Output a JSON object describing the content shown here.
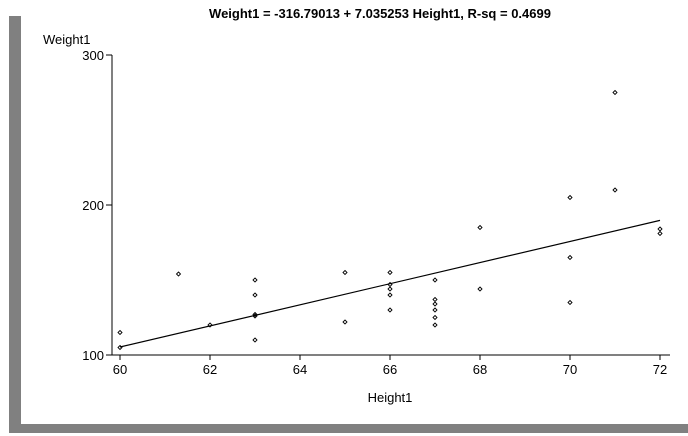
{
  "chart_data": {
    "type": "scatter",
    "title": "Weight1 = -316.79013 + 7.035253 Height1,   R-sq = 0.4699",
    "xlabel": "Height1",
    "ylabel": "Weight1",
    "xlim": [
      60,
      72
    ],
    "ylim": [
      100,
      300
    ],
    "xticks": [
      "60",
      "62",
      "64",
      "66",
      "68",
      "70",
      "72"
    ],
    "yticks": [
      "100",
      "200",
      "300"
    ],
    "grid": false,
    "regression": {
      "intercept": -316.79013,
      "slope": 7.035253,
      "x_range": [
        60,
        72
      ]
    },
    "points": [
      {
        "x": 60,
        "y": 115
      },
      {
        "x": 60,
        "y": 105
      },
      {
        "x": 61.3,
        "y": 154
      },
      {
        "x": 62,
        "y": 120
      },
      {
        "x": 63,
        "y": 150
      },
      {
        "x": 63,
        "y": 140
      },
      {
        "x": 63,
        "y": 127
      },
      {
        "x": 63,
        "y": 126
      },
      {
        "x": 63,
        "y": 110
      },
      {
        "x": 65,
        "y": 155
      },
      {
        "x": 65,
        "y": 122
      },
      {
        "x": 66,
        "y": 155
      },
      {
        "x": 66,
        "y": 147
      },
      {
        "x": 66,
        "y": 144
      },
      {
        "x": 66,
        "y": 140
      },
      {
        "x": 66,
        "y": 130
      },
      {
        "x": 67,
        "y": 150
      },
      {
        "x": 67,
        "y": 137
      },
      {
        "x": 67,
        "y": 134
      },
      {
        "x": 67,
        "y": 130
      },
      {
        "x": 67,
        "y": 125
      },
      {
        "x": 67,
        "y": 120
      },
      {
        "x": 68,
        "y": 185
      },
      {
        "x": 68,
        "y": 144
      },
      {
        "x": 70,
        "y": 205
      },
      {
        "x": 70,
        "y": 165
      },
      {
        "x": 70,
        "y": 135
      },
      {
        "x": 71,
        "y": 275
      },
      {
        "x": 71,
        "y": 210
      },
      {
        "x": 72,
        "y": 184
      },
      {
        "x": 72,
        "y": 181
      }
    ]
  },
  "colors": {
    "frame_gray": "#7f7f7f",
    "plot_bg": "#ffffff",
    "ink": "#000000"
  }
}
